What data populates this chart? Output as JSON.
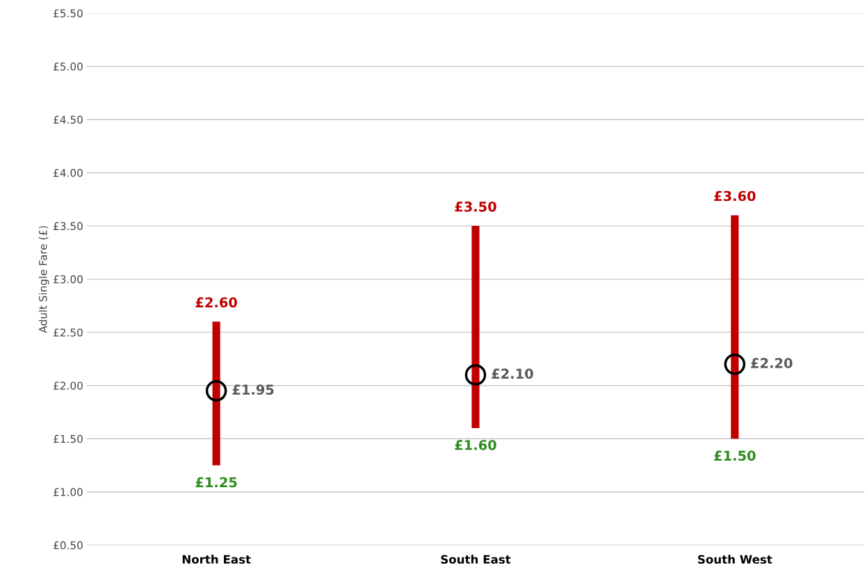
{
  "chart_data": {
    "type": "bar",
    "ylabel": "Adult Single Fare (£)",
    "categories": [
      "North East",
      "South East",
      "South West"
    ],
    "series": [
      {
        "color": "#c00000",
        "base": [
          1.25,
          1.6,
          1.5
        ],
        "values": [
          1.35,
          1.9,
          2.1
        ]
      },
      {
        "type": "scatter",
        "color": "#000000",
        "marker": "circle",
        "x": [
          "North East",
          "South East",
          "South West"
        ],
        "values": [
          1.95,
          2.1,
          2.2
        ],
        "value_labels": [
          "£1.95",
          "£2.10",
          "£2.20"
        ]
      }
    ],
    "annotations": [
      {
        "text": "£2.60",
        "x": "North East",
        "y": 2.6
      },
      {
        "text": "£3.50",
        "x": "South East",
        "y": 3.5
      },
      {
        "text": "£3.60",
        "x": "South West",
        "y": 3.6
      },
      {
        "text": "£1.25",
        "x": "North East",
        "y": 1.25
      },
      {
        "text": "£1.60",
        "x": "South East",
        "y": 1.6
      },
      {
        "text": "£1.50",
        "x": "South West",
        "y": 1.5
      }
    ],
    "ylim": [
      0.5,
      5.5
    ],
    "yticks": [
      {
        "value": 0.5,
        "label": "£0.50"
      },
      {
        "value": 1.0,
        "label": "£1.00"
      },
      {
        "value": 1.5,
        "label": "£1.50"
      },
      {
        "value": 2.0,
        "label": "£2.00"
      },
      {
        "value": 2.5,
        "label": "£2.50"
      },
      {
        "value": 3.0,
        "label": "£3.00"
      },
      {
        "value": 3.5,
        "label": "£3.50"
      },
      {
        "value": 4.0,
        "label": "£4.00"
      },
      {
        "value": 4.5,
        "label": "£4.50"
      },
      {
        "value": 5.0,
        "label": "£5.00"
      },
      {
        "value": 5.5,
        "label": "£5.50"
      }
    ],
    "grid": "y"
  }
}
